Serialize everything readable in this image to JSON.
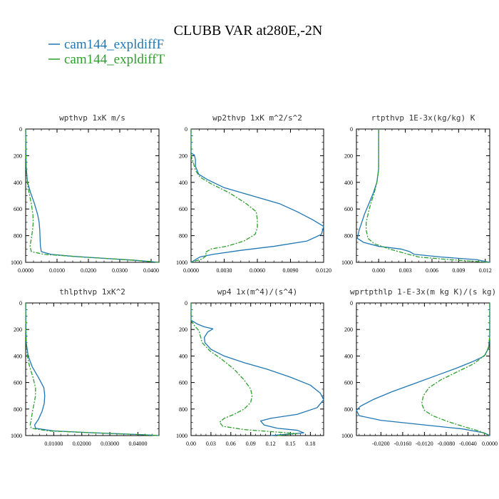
{
  "title": "CLUBB VAR at280E,-2N",
  "legend": [
    {
      "name": "cam144_expldiffF",
      "color": "#1f77b4",
      "dash": "solid"
    },
    {
      "name": "cam144_expldiffT",
      "color": "#2ca02c",
      "dash": "dashdot"
    }
  ],
  "chart_data": [
    {
      "type": "line",
      "title": "wpthvp  1xK m/s",
      "xlim": [
        0,
        0.0425
      ],
      "ylim": [
        1000,
        0
      ],
      "xticks": [
        0,
        0.01,
        0.02,
        0.03,
        0.04
      ],
      "xticklabels": [
        "0.0000",
        "0.0100",
        "0.0200",
        "0.0300",
        "0.0400"
      ],
      "yticks": [
        0,
        200,
        400,
        600,
        800,
        1000
      ],
      "series": [
        {
          "name": "cam144_expldiffF",
          "points": [
            [
              0,
              0
            ],
            [
              0.0001,
              200
            ],
            [
              0.0002,
              300
            ],
            [
              0.0006,
              400
            ],
            [
              0.0016,
              480
            ],
            [
              0.0028,
              560
            ],
            [
              0.0038,
              640
            ],
            [
              0.0043,
              700
            ],
            [
              0.0045,
              760
            ],
            [
              0.0046,
              820
            ],
            [
              0.0047,
              880
            ],
            [
              0.005,
              920
            ],
            [
              0.008,
              940
            ],
            [
              0.015,
              955
            ],
            [
              0.025,
              970
            ],
            [
              0.035,
              985
            ],
            [
              0.0425,
              1000
            ]
          ]
        },
        {
          "name": "cam144_expldiffT",
          "points": [
            [
              0,
              0
            ],
            [
              0.0001,
              200
            ],
            [
              0.0002,
              300
            ],
            [
              0.0005,
              400
            ],
            [
              0.0011,
              480
            ],
            [
              0.0018,
              560
            ],
            [
              0.0023,
              640
            ],
            [
              0.0024,
              700
            ],
            [
              0.0022,
              760
            ],
            [
              0.0018,
              820
            ],
            [
              0.0014,
              880
            ],
            [
              0.0018,
              920
            ],
            [
              0.006,
              940
            ],
            [
              0.015,
              955
            ],
            [
              0.025,
              970
            ],
            [
              0.035,
              985
            ],
            [
              0.0425,
              1000
            ]
          ]
        }
      ]
    },
    {
      "type": "line",
      "title": "wp2thvp  1xK m^2/s^2",
      "xlim": [
        0,
        0.012
      ],
      "ylim": [
        1000,
        0
      ],
      "xticks": [
        0,
        0.003,
        0.006,
        0.009,
        0.012
      ],
      "xticklabels": [
        "0.0000",
        "0.0030",
        "0.0060",
        "0.0090",
        "0.0120"
      ],
      "yticks": [
        0,
        200,
        400,
        600,
        800,
        1000
      ],
      "series": [
        {
          "name": "cam144_expldiffF",
          "points": [
            [
              0,
              0
            ],
            [
              0,
              180
            ],
            [
              0.0003,
              195
            ],
            [
              0.0004,
              230
            ],
            [
              0.0004,
              280
            ],
            [
              0.0007,
              340
            ],
            [
              0.0015,
              380
            ],
            [
              0.003,
              440
            ],
            [
              0.0055,
              500
            ],
            [
              0.008,
              560
            ],
            [
              0.0096,
              620
            ],
            [
              0.011,
              680
            ],
            [
              0.012,
              730
            ],
            [
              0.0118,
              790
            ],
            [
              0.0105,
              840
            ],
            [
              0.0075,
              880
            ],
            [
              0.0045,
              910
            ],
            [
              0.002,
              940
            ],
            [
              0.0008,
              960
            ],
            [
              0.0003,
              985
            ],
            [
              0,
              1000
            ]
          ]
        },
        {
          "name": "cam144_expldiffT",
          "points": [
            [
              0,
              0
            ],
            [
              0,
              200
            ],
            [
              0.0002,
              250
            ],
            [
              0.0004,
              310
            ],
            [
              0.0008,
              360
            ],
            [
              0.0018,
              410
            ],
            [
              0.0035,
              480
            ],
            [
              0.005,
              560
            ],
            [
              0.0059,
              620
            ],
            [
              0.006,
              680
            ],
            [
              0.006,
              740
            ],
            [
              0.0058,
              790
            ],
            [
              0.0048,
              840
            ],
            [
              0.0032,
              880
            ],
            [
              0.0018,
              900
            ],
            [
              0.0013,
              925
            ],
            [
              0.0014,
              950
            ],
            [
              0.001,
              975
            ],
            [
              0,
              1000
            ]
          ]
        }
      ]
    },
    {
      "type": "line",
      "title": "rtpthvp  1E-3x(kg/kg) K",
      "xlim": [
        -0.0025,
        0.0125
      ],
      "ylim": [
        1000,
        0
      ],
      "xticks": [
        0,
        0.003,
        0.006,
        0.009,
        0.012
      ],
      "xticklabels": [
        "0.000",
        "0.003",
        "0.006",
        "0.009",
        "0.012"
      ],
      "yticks": [
        0,
        200,
        400,
        600,
        800,
        1000
      ],
      "series": [
        {
          "name": "cam144_expldiffF",
          "points": [
            [
              0,
              0
            ],
            [
              0,
              200
            ],
            [
              0,
              300
            ],
            [
              -0.0002,
              400
            ],
            [
              -0.0006,
              480
            ],
            [
              -0.0011,
              560
            ],
            [
              -0.0016,
              640
            ],
            [
              -0.0019,
              700
            ],
            [
              -0.0022,
              760
            ],
            [
              -0.0024,
              820
            ],
            [
              -0.0017,
              850
            ],
            [
              0,
              880
            ],
            [
              0.0025,
              900
            ],
            [
              0.0035,
              920
            ],
            [
              0.004,
              940
            ],
            [
              0.007,
              960
            ],
            [
              0.011,
              980
            ],
            [
              0.0125,
              1000
            ]
          ]
        },
        {
          "name": "cam144_expldiffT",
          "points": [
            [
              0,
              0
            ],
            [
              0,
              200
            ],
            [
              0,
              300
            ],
            [
              -0.0002,
              400
            ],
            [
              -0.0005,
              480
            ],
            [
              -0.0009,
              560
            ],
            [
              -0.0012,
              640
            ],
            [
              -0.0014,
              700
            ],
            [
              -0.0014,
              760
            ],
            [
              -0.0012,
              820
            ],
            [
              -0.0005,
              860
            ],
            [
              0.0012,
              900
            ],
            [
              0.0028,
              930
            ],
            [
              0.0045,
              960
            ],
            [
              0.008,
              980
            ],
            [
              0.0125,
              1000
            ]
          ]
        }
      ]
    },
    {
      "type": "line",
      "title": "thlpthvp  1xK^2",
      "xlim": [
        0,
        0.0475
      ],
      "ylim": [
        1000,
        0
      ],
      "xticks": [
        0.01,
        0.02,
        0.03,
        0.04
      ],
      "xticklabels": [
        "0.01000",
        "0.02000",
        "0.03000",
        "0.04000"
      ],
      "yticks": [
        0,
        200,
        400,
        600,
        800,
        1000
      ],
      "series": [
        {
          "name": "cam144_expldiffF",
          "points": [
            [
              0,
              0
            ],
            [
              0.0001,
              200
            ],
            [
              0.0002,
              300
            ],
            [
              0.0009,
              400
            ],
            [
              0.0023,
              480
            ],
            [
              0.0045,
              560
            ],
            [
              0.0065,
              640
            ],
            [
              0.0068,
              700
            ],
            [
              0.0066,
              760
            ],
            [
              0.0058,
              820
            ],
            [
              0.0045,
              880
            ],
            [
              0.0032,
              920
            ],
            [
              0.0035,
              945
            ],
            [
              0.01,
              965
            ],
            [
              0.025,
              980
            ],
            [
              0.04,
              992
            ],
            [
              0.0475,
              1000
            ]
          ]
        },
        {
          "name": "cam144_expldiffT",
          "points": [
            [
              0,
              0
            ],
            [
              0.0001,
              200
            ],
            [
              0.0002,
              300
            ],
            [
              0.0006,
              400
            ],
            [
              0.0014,
              480
            ],
            [
              0.0026,
              560
            ],
            [
              0.0035,
              640
            ],
            [
              0.0035,
              700
            ],
            [
              0.003,
              760
            ],
            [
              0.0024,
              820
            ],
            [
              0.002,
              880
            ],
            [
              0.0016,
              920
            ],
            [
              0.002,
              945
            ],
            [
              0.008,
              965
            ],
            [
              0.025,
              980
            ],
            [
              0.04,
              992
            ],
            [
              0.0475,
              1000
            ]
          ]
        }
      ]
    },
    {
      "type": "line",
      "title": "wp4  1x(m^4)/(s^4)",
      "xlim": [
        0,
        0.2
      ],
      "ylim": [
        1000,
        0
      ],
      "xticks": [
        0,
        0.03,
        0.06,
        0.09,
        0.12,
        0.15,
        0.18
      ],
      "xticklabels": [
        "0.00",
        "0.03",
        "0.06",
        "0.09",
        "0.12",
        "0.15",
        "0.18"
      ],
      "yticks": [
        0,
        200,
        400,
        600,
        800,
        1000
      ],
      "series": [
        {
          "name": "cam144_expldiffF",
          "points": [
            [
              0,
              0
            ],
            [
              0,
              130
            ],
            [
              0.01,
              160
            ],
            [
              0.02,
              180
            ],
            [
              0.033,
              195
            ],
            [
              0.025,
              220
            ],
            [
              0.02,
              260
            ],
            [
              0.021,
              300
            ],
            [
              0.03,
              350
            ],
            [
              0.05,
              400
            ],
            [
              0.08,
              450
            ],
            [
              0.115,
              500
            ],
            [
              0.15,
              560
            ],
            [
              0.18,
              620
            ],
            [
              0.195,
              680
            ],
            [
              0.2,
              730
            ],
            [
              0.19,
              790
            ],
            [
              0.16,
              840
            ],
            [
              0.12,
              870
            ],
            [
              0.105,
              890
            ],
            [
              0.11,
              920
            ],
            [
              0.13,
              945
            ],
            [
              0.16,
              960
            ],
            [
              0.17,
              980
            ],
            [
              0.12,
              1000
            ]
          ]
        },
        {
          "name": "cam144_expldiffT",
          "points": [
            [
              0,
              0
            ],
            [
              0,
              130
            ],
            [
              0.005,
              170
            ],
            [
              0.012,
              210
            ],
            [
              0.014,
              250
            ],
            [
              0.017,
              300
            ],
            [
              0.028,
              360
            ],
            [
              0.045,
              420
            ],
            [
              0.065,
              500
            ],
            [
              0.08,
              580
            ],
            [
              0.09,
              650
            ],
            [
              0.092,
              700
            ],
            [
              0.09,
              750
            ],
            [
              0.08,
              800
            ],
            [
              0.065,
              840
            ],
            [
              0.05,
              870
            ],
            [
              0.043,
              900
            ],
            [
              0.048,
              930
            ],
            [
              0.08,
              955
            ],
            [
              0.12,
              970
            ],
            [
              0.16,
              985
            ],
            [
              0.13,
              1000
            ]
          ]
        }
      ]
    },
    {
      "type": "line",
      "title": "wprtpthlp  1-E-3x(m kg K)/(s kg)",
      "xlim": [
        -0.0245,
        0
      ],
      "ylim": [
        1000,
        0
      ],
      "xticks": [
        -0.02,
        -0.016,
        -0.012,
        -0.008,
        -0.004,
        0
      ],
      "xticklabels": [
        "-0.0200",
        "-0.0160",
        "-0.0120",
        "-0.0080",
        "-0.0040",
        "0.0000"
      ],
      "yticks": [
        0,
        200,
        400,
        600,
        800,
        1000
      ],
      "series": [
        {
          "name": "cam144_expldiffF",
          "points": [
            [
              0,
              0
            ],
            [
              0,
              250
            ],
            [
              -0.0002,
              340
            ],
            [
              -0.001,
              400
            ],
            [
              -0.003,
              440
            ],
            [
              -0.006,
              490
            ],
            [
              -0.01,
              550
            ],
            [
              -0.014,
              610
            ],
            [
              -0.018,
              670
            ],
            [
              -0.0215,
              730
            ],
            [
              -0.0238,
              780
            ],
            [
              -0.0245,
              810
            ],
            [
              -0.024,
              850
            ],
            [
              -0.02,
              885
            ],
            [
              -0.012,
              920
            ],
            [
              -0.005,
              950
            ],
            [
              -0.001,
              980
            ],
            [
              0,
              1000
            ]
          ]
        },
        {
          "name": "cam144_expldiffT",
          "points": [
            [
              0,
              0
            ],
            [
              0,
              250
            ],
            [
              -0.0002,
              330
            ],
            [
              -0.0008,
              390
            ],
            [
              -0.003,
              460
            ],
            [
              -0.006,
              520
            ],
            [
              -0.009,
              580
            ],
            [
              -0.0112,
              640
            ],
            [
              -0.0122,
              700
            ],
            [
              -0.0125,
              760
            ],
            [
              -0.012,
              810
            ],
            [
              -0.0105,
              850
            ],
            [
              -0.008,
              890
            ],
            [
              -0.005,
              930
            ],
            [
              -0.002,
              965
            ],
            [
              0,
              1000
            ]
          ]
        }
      ]
    }
  ]
}
